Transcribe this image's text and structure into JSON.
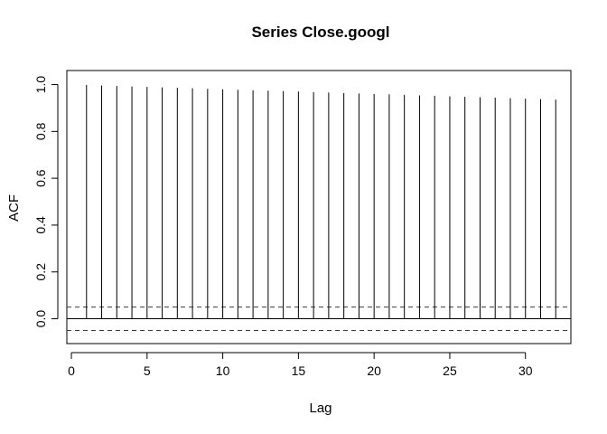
{
  "chart_data": {
    "type": "bar",
    "title": "Series  Close.googl",
    "xlabel": "Lag",
    "ylabel": "ACF",
    "xlim": [
      -0.3,
      33.0
    ],
    "ylim": [
      -0.106,
      1.06
    ],
    "x_ticks": [
      "0",
      "5",
      "10",
      "15",
      "20",
      "25",
      "30"
    ],
    "y_ticks": [
      "0.0",
      "0.2",
      "0.4",
      "0.6",
      "0.8",
      "1.0"
    ],
    "lags": [
      1,
      2,
      3,
      4,
      5,
      6,
      7,
      8,
      9,
      10,
      11,
      12,
      13,
      14,
      15,
      16,
      17,
      18,
      19,
      20,
      21,
      22,
      23,
      24,
      25,
      26,
      27,
      28,
      29,
      30,
      31,
      32
    ],
    "acf": [
      0.998,
      0.996,
      0.994,
      0.992,
      0.99,
      0.988,
      0.986,
      0.984,
      0.982,
      0.98,
      0.978,
      0.976,
      0.974,
      0.972,
      0.97,
      0.968,
      0.966,
      0.964,
      0.962,
      0.96,
      0.958,
      0.956,
      0.954,
      0.952,
      0.95,
      0.948,
      0.946,
      0.944,
      0.942,
      0.94,
      0.938,
      0.936
    ],
    "confidence_bound": 0.05,
    "zero_line": 0.0,
    "colors": {
      "bars": "#000000",
      "confidence": "#1f3b8f",
      "axes": "#000000"
    }
  }
}
